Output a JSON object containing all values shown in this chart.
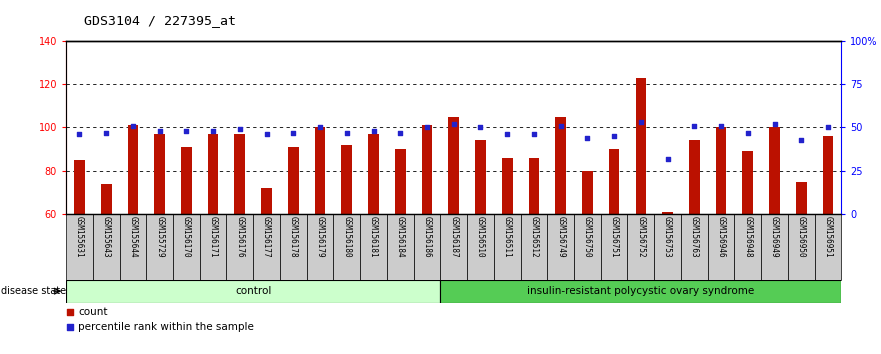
{
  "title": "GDS3104 / 227395_at",
  "samples": [
    "GSM155631",
    "GSM155643",
    "GSM155644",
    "GSM155729",
    "GSM156170",
    "GSM156171",
    "GSM156176",
    "GSM156177",
    "GSM156178",
    "GSM156179",
    "GSM156180",
    "GSM156181",
    "GSM156184",
    "GSM156186",
    "GSM156187",
    "GSM156510",
    "GSM156511",
    "GSM156512",
    "GSM156749",
    "GSM156750",
    "GSM156751",
    "GSM156752",
    "GSM156753",
    "GSM156763",
    "GSM156946",
    "GSM156948",
    "GSM156949",
    "GSM156950",
    "GSM156951"
  ],
  "count_values": [
    85,
    74,
    101,
    97,
    91,
    97,
    97,
    72,
    91,
    100,
    92,
    97,
    90,
    101,
    105,
    94,
    86,
    86,
    105,
    80,
    90,
    123,
    61,
    94,
    100,
    89,
    100,
    75,
    96
  ],
  "percentile_values": [
    46,
    47,
    51,
    48,
    48,
    48,
    49,
    46,
    47,
    50,
    47,
    48,
    47,
    50,
    52,
    50,
    46,
    46,
    51,
    44,
    45,
    53,
    32,
    51,
    51,
    47,
    52,
    43,
    50
  ],
  "control_count": 14,
  "disease_state_label": "disease state",
  "control_label": "control",
  "disease_label": "insulin-resistant polycystic ovary syndrome",
  "left_ylim": [
    60,
    140
  ],
  "right_ylim": [
    0,
    100
  ],
  "left_yticks": [
    60,
    80,
    100,
    120,
    140
  ],
  "right_yticks": [
    0,
    25,
    50,
    75,
    100
  ],
  "right_yticklabels": [
    "0",
    "25",
    "50",
    "75",
    "100%"
  ],
  "bar_color": "#BB1100",
  "dot_color": "#2222CC",
  "control_bg": "#CCFFCC",
  "disease_bg": "#55CC55",
  "col_bg": "#CCCCCC",
  "legend_count_label": "count",
  "legend_percentile_label": "percentile rank within the sample",
  "title_fontsize": 9.5,
  "tick_fontsize": 5.5,
  "grid_yticks": [
    80,
    100,
    120
  ]
}
